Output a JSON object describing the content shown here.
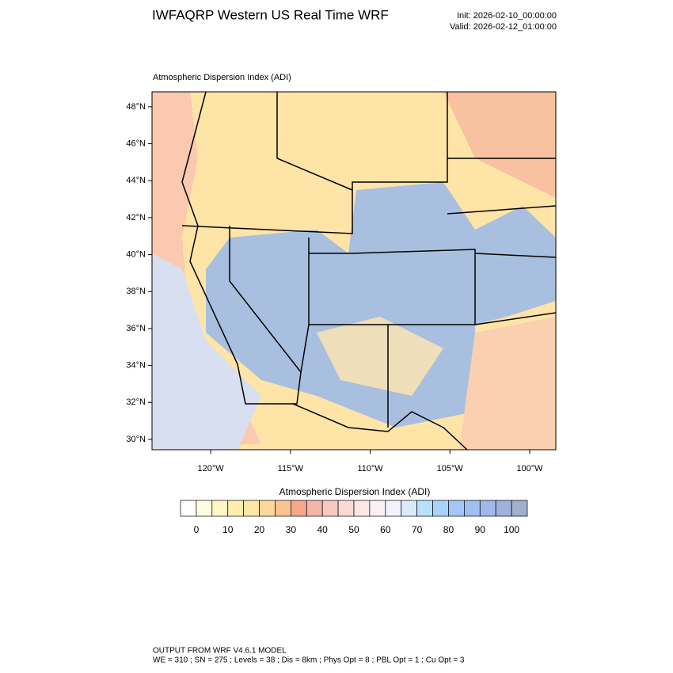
{
  "header": {
    "title": "IWFAQRP Western US Real Time WRF",
    "init": "Init: 2026-02-10_00:00:00",
    "valid": "Valid: 2026-02-12_01:00:00"
  },
  "map": {
    "subtitle": "Atmospheric Dispersion Index   (ADI)",
    "xlim": [
      -123.68,
      -98.36
    ],
    "ylim": [
      29.44,
      48.81
    ],
    "xticks": [
      {
        "value": -120,
        "label": "120°W"
      },
      {
        "value": -115,
        "label": "115°W"
      },
      {
        "value": -110,
        "label": "110°W"
      },
      {
        "value": -105,
        "label": "105°W"
      },
      {
        "value": -100,
        "label": "100°W"
      }
    ],
    "yticks": [
      {
        "value": 30,
        "label": "30°N"
      },
      {
        "value": 32,
        "label": "32°N"
      },
      {
        "value": 34,
        "label": "34°N"
      },
      {
        "value": 36,
        "label": "36°N"
      },
      {
        "value": 38,
        "label": "38°N"
      },
      {
        "value": 40,
        "label": "40°N"
      },
      {
        "value": 42,
        "label": "42°N"
      },
      {
        "value": 44,
        "label": "44°N"
      },
      {
        "value": 46,
        "label": "46°N"
      },
      {
        "value": 48,
        "label": "48°N"
      }
    ]
  },
  "colorbar": {
    "title": "Atmospheric Dispersion Index  (ADI)",
    "lim": [
      -5,
      105
    ],
    "colors": [
      "#ffffff",
      "#fffde0",
      "#fff6c8",
      "#ffeeb0",
      "#ffe6a4",
      "#ffd79c",
      "#fbc38f",
      "#f6a88a",
      "#f5b6a9",
      "#f8c8c0",
      "#fadad5",
      "#fce8e6",
      "#fbf0f5",
      "#f1f3fc",
      "#dbeafa",
      "#b8e2fb",
      "#a9d3f8",
      "#a2c7f4",
      "#9fbfef",
      "#a0b8e8",
      "#9fb2de",
      "#9fb0cc"
    ],
    "ticks": [
      0,
      10,
      20,
      30,
      40,
      50,
      60,
      70,
      80,
      90,
      100
    ]
  },
  "footer": {
    "line1": "OUTPUT FROM WRF V4.6.1 MODEL",
    "line2": "WE = 310 ; SN = 275 ; Levels = 38 ; Dis = 8km ; Phys Opt = 8 ; PBL Opt = 1 ; Cu Opt = 3"
  }
}
